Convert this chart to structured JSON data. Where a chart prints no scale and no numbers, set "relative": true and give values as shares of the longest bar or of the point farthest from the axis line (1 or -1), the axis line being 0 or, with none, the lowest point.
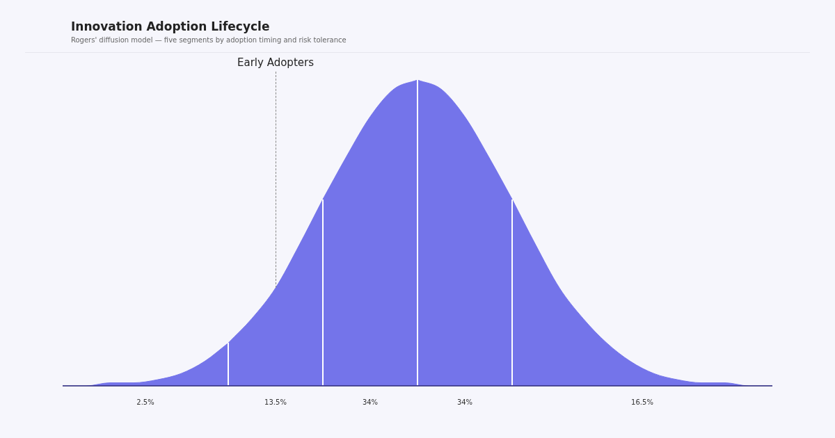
{
  "chart_data": {
    "type": "area",
    "title": "Innovation Adoption Lifecycle",
    "subtitle": "Rogers' diffusion model — five segments by adoption timing and risk tolerance",
    "relative": true,
    "grid": false,
    "legend": false,
    "categories": [
      null,
      null,
      null,
      null,
      null,
      null,
      null,
      null,
      null,
      null,
      null,
      null,
      null,
      null,
      null,
      null,
      null,
      null,
      null,
      null,
      null,
      null,
      null,
      null,
      null,
      null,
      null,
      null,
      null,
      null,
      null
    ],
    "series": [
      {
        "name": "2.5%",
        "color": "#7474ea",
        "values": [
          0,
          0,
          0.01,
          0.01,
          0.02,
          0.04,
          0.08,
          0.14,
          null,
          null,
          null,
          null,
          null,
          null,
          null,
          null,
          null,
          null,
          null,
          null,
          null,
          null,
          null,
          null,
          null,
          null,
          null,
          null,
          null,
          null,
          null
        ]
      },
      {
        "name": "13.5%",
        "color": "#7474ea",
        "values": [
          null,
          null,
          null,
          null,
          null,
          null,
          null,
          0.14,
          0.22,
          0.32,
          0.46,
          0.61,
          null,
          null,
          null,
          null,
          null,
          null,
          null,
          null,
          null,
          null,
          null,
          null,
          null,
          null,
          null,
          null,
          null,
          null,
          null
        ]
      },
      {
        "name": "34%",
        "color": "#7474ea",
        "values": [
          null,
          null,
          null,
          null,
          null,
          null,
          null,
          null,
          null,
          null,
          null,
          0.61,
          0.75,
          0.88,
          0.97,
          1,
          null,
          null,
          null,
          null,
          null,
          null,
          null,
          null,
          null,
          null,
          null,
          null,
          null,
          null,
          null
        ]
      },
      {
        "name": "34%",
        "color": "#7474ea",
        "values": [
          null,
          null,
          null,
          null,
          null,
          null,
          null,
          null,
          null,
          null,
          null,
          null,
          null,
          null,
          null,
          1,
          0.97,
          0.88,
          0.75,
          0.61,
          null,
          null,
          null,
          null,
          null,
          null,
          null,
          null,
          null,
          null,
          null
        ]
      },
      {
        "name": "16.5%",
        "color": "#7474ea",
        "values": [
          null,
          null,
          null,
          null,
          null,
          null,
          null,
          null,
          null,
          null,
          null,
          null,
          null,
          null,
          null,
          null,
          null,
          null,
          null,
          0.61,
          0.46,
          0.32,
          0.22,
          0.14,
          0.08,
          0.04,
          0.02,
          0.01,
          0.01,
          0,
          0
        ]
      }
    ],
    "annotations": [
      "Early Adopters"
    ]
  }
}
